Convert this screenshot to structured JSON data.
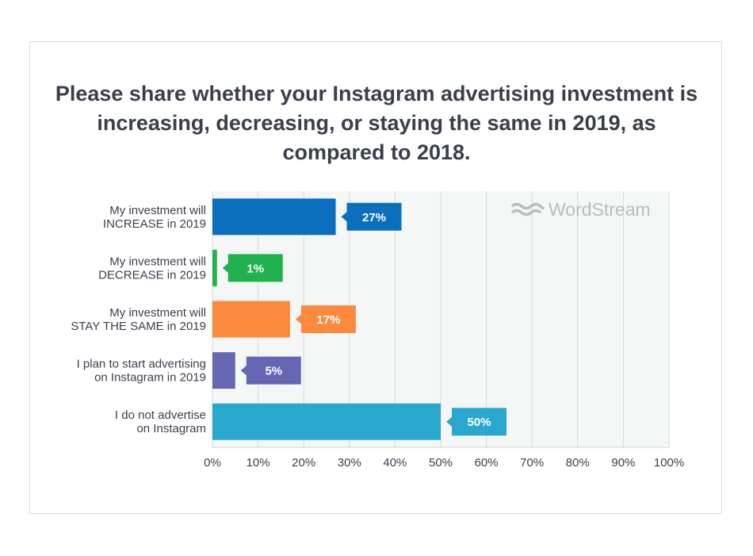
{
  "chart_data": {
    "type": "bar",
    "orientation": "horizontal",
    "title": "Please share whether your Instagram advertising investment is increasing, decreasing, or staying the same in 2019, as compared to 2018.",
    "categories": [
      [
        "My investment will",
        "INCREASE in 2019"
      ],
      [
        "My investment will",
        "DECREASE in 2019"
      ],
      [
        "My investment will",
        "STAY THE SAME in 2019"
      ],
      [
        "I plan to start advertising",
        "on Instagram in 2019"
      ],
      [
        "I do not advertise",
        "on Instagram"
      ]
    ],
    "values": [
      27,
      1,
      17,
      5,
      50
    ],
    "value_labels": [
      "27%",
      "1%",
      "17%",
      "5%",
      "50%"
    ],
    "colors": [
      "#0c6fbe",
      "#21b24f",
      "#fb8a3f",
      "#6766b3",
      "#2aa7cd"
    ],
    "xlim": [
      0,
      100
    ],
    "xticks": [
      0,
      10,
      20,
      30,
      40,
      50,
      60,
      70,
      80,
      90,
      100
    ],
    "xtick_labels": [
      "0%",
      "10%",
      "20%",
      "30%",
      "40%",
      "50%",
      "60%",
      "70%",
      "80%",
      "90%",
      "100%"
    ],
    "grid": true,
    "watermark": "WordStream"
  }
}
